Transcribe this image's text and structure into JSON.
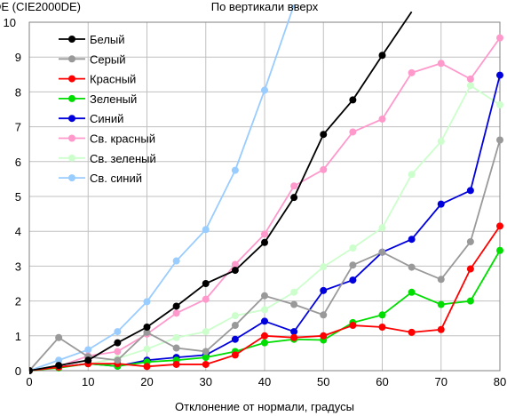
{
  "chart_data": {
    "type": "line",
    "title": "По вертикали вверх",
    "xlabel": "Отклонение от нормали, градусы",
    "ylabel": "DE (CIE2000DE)",
    "xlim": [
      0,
      80
    ],
    "ylim": [
      0,
      10
    ],
    "xticks": [
      0,
      10,
      20,
      30,
      40,
      50,
      60,
      70,
      80
    ],
    "yticks": [
      0,
      1,
      2,
      3,
      4,
      5,
      6,
      7,
      8,
      9,
      10
    ],
    "grid": true,
    "legend_position": "top-left",
    "x": [
      0,
      5,
      10,
      15,
      20,
      25,
      30,
      35,
      40,
      45,
      50,
      55,
      60,
      65,
      70,
      75,
      80
    ],
    "series": [
      {
        "name": "Белый",
        "color": "#000000",
        "values": [
          0,
          0.15,
          0.3,
          0.8,
          1.25,
          1.85,
          2.5,
          2.88,
          3.68,
          4.97,
          6.78,
          7.77,
          9.05,
          10.3,
          null,
          null,
          null
        ]
      },
      {
        "name": "Серый",
        "color": "#999999",
        "values": [
          0,
          0.95,
          0.4,
          0.3,
          1.1,
          0.65,
          0.55,
          1.3,
          2.15,
          1.9,
          1.6,
          3.03,
          3.4,
          2.97,
          2.62,
          3.7,
          6.62
        ]
      },
      {
        "name": "Красный",
        "color": "#ff0000",
        "values": [
          0,
          0.1,
          0.2,
          0.2,
          0.12,
          0.18,
          0.18,
          0.45,
          1.0,
          0.95,
          1.0,
          1.3,
          1.25,
          1.1,
          1.18,
          2.92,
          4.15
        ]
      },
      {
        "name": "Зеленый",
        "color": "#00dd00",
        "values": [
          0,
          0.08,
          0.2,
          0.13,
          0.25,
          0.3,
          0.38,
          0.55,
          0.8,
          0.9,
          0.88,
          1.38,
          1.6,
          2.25,
          1.9,
          2.0,
          3.45
        ]
      },
      {
        "name": "Синий",
        "color": "#0000dd",
        "values": [
          0,
          0.1,
          0.2,
          0.13,
          0.3,
          0.38,
          0.45,
          0.9,
          1.42,
          1.12,
          2.3,
          2.6,
          3.4,
          3.77,
          4.78,
          5.17,
          8.48
        ]
      },
      {
        "name": "Св. красный",
        "color": "#ff99cc",
        "values": [
          0,
          0.12,
          0.42,
          0.55,
          1.05,
          1.65,
          2.05,
          3.05,
          3.92,
          5.3,
          5.77,
          6.85,
          7.22,
          8.55,
          8.82,
          8.37,
          9.55
        ]
      },
      {
        "name": "Св. зеленый",
        "color": "#ccffcc",
        "values": [
          0,
          0.1,
          0.2,
          0.35,
          0.62,
          0.95,
          1.12,
          1.58,
          1.75,
          2.25,
          2.98,
          3.52,
          4.1,
          5.63,
          6.58,
          8.18,
          7.63
        ]
      },
      {
        "name": "Св. синий",
        "color": "#99ccff",
        "values": [
          0,
          0.3,
          0.6,
          1.12,
          1.98,
          3.15,
          4.05,
          5.75,
          8.05,
          10.5,
          null,
          null,
          null,
          null,
          null,
          null,
          null
        ]
      }
    ]
  }
}
